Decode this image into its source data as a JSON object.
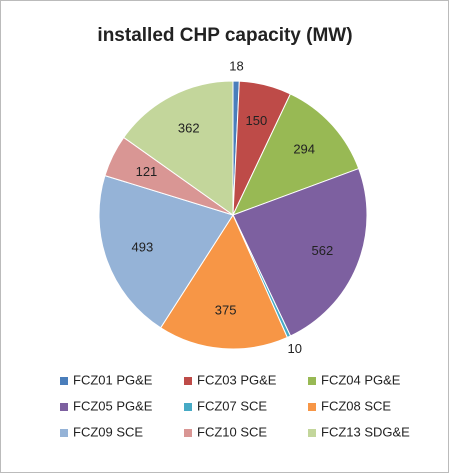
{
  "chart_data": {
    "type": "pie",
    "title": "installed CHP capacity (MW)",
    "categories": [
      "FCZ01 PG&E",
      "FCZ03 PG&E",
      "FCZ04 PG&E",
      "FCZ05 PG&E",
      "FCZ07 SCE",
      "FCZ08 SCE",
      "FCZ09 SCE",
      "FCZ10 SCE",
      "FCZ13 SDG&E"
    ],
    "values": [
      18,
      150,
      294,
      562,
      10,
      375,
      493,
      121,
      362
    ],
    "colors": [
      "#4a7ebb",
      "#be4b48",
      "#98b954",
      "#7d60a0",
      "#46aac5",
      "#f79646",
      "#95b3d7",
      "#d99694",
      "#c3d69b"
    ],
    "legend": "bottom"
  }
}
